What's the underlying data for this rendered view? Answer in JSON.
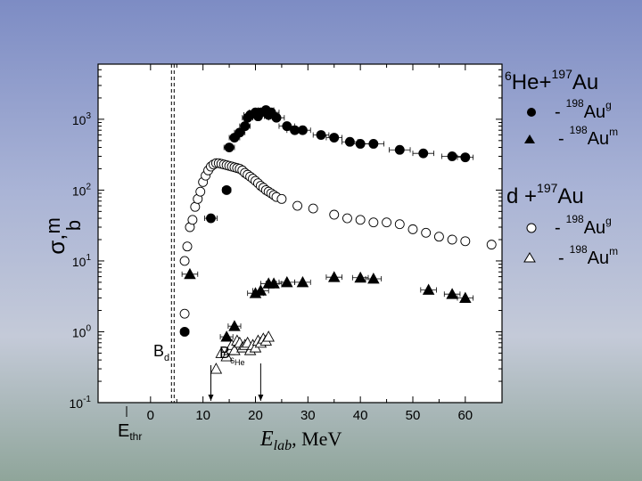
{
  "chart_data": {
    "type": "scatter",
    "title": "",
    "xlabel": "E_lab , MeV",
    "xlabel_parts": {
      "main": "E",
      "sub": "lab",
      "rest": ", MeV"
    },
    "ylabel": "σ, mb",
    "ylabel_parts": {
      "sigma": "σ,",
      "m": "m",
      "b": "b"
    },
    "x_scale": "linear",
    "y_scale": "log",
    "xlim": [
      -10,
      67
    ],
    "ylim": [
      0.1,
      6000
    ],
    "x_ticks": [
      0,
      10,
      20,
      30,
      40,
      50,
      60
    ],
    "x_tick_labels": [
      "0",
      "10",
      "20",
      "30",
      "40",
      "50",
      "60"
    ],
    "y_ticks": [
      0.1,
      1,
      10,
      100,
      1000
    ],
    "y_tick_labels": [
      {
        "base": "10",
        "exp": "-1"
      },
      {
        "base": "10",
        "exp": "0"
      },
      {
        "base": "10",
        "exp": "1"
      },
      {
        "base": "10",
        "exp": "2"
      },
      {
        "base": "10",
        "exp": "3"
      }
    ],
    "grid": false,
    "legend_placement": "right",
    "reactions": [
      {
        "mass_a": "6",
        "sym_a": "He+",
        "mass_b": "197",
        "sym_b": "Au"
      },
      {
        "mass_a": "",
        "sym_a": "d +",
        "mass_b": "197",
        "sym_b": "Au"
      }
    ],
    "series": [
      {
        "name": "- 198Au g",
        "name_dash": "-",
        "name_mass": "198",
        "name_sym": "Au",
        "name_sup": "g",
        "marker": "filled-circle",
        "reaction": 0,
        "x": [
          6.5,
          11.5,
          14.5,
          15,
          16,
          17,
          18,
          18.5,
          19,
          20,
          20.5,
          21,
          22,
          22.5,
          23,
          24,
          26,
          27.5,
          29,
          32.5,
          35,
          38,
          40,
          42.5,
          47.5,
          52,
          57.5,
          60
        ],
        "y": [
          1.0,
          40,
          100,
          400,
          550,
          650,
          800,
          1050,
          1150,
          1250,
          1100,
          1250,
          1350,
          1150,
          1250,
          1050,
          800,
          700,
          700,
          600,
          550,
          480,
          450,
          450,
          370,
          330,
          300,
          290
        ],
        "xerr": [
          0.8,
          1.2,
          0.8,
          1,
          1,
          1,
          1,
          1,
          1.2,
          1.2,
          1.2,
          1.5,
          1.5,
          1.5,
          1.5,
          1.5,
          1.5,
          1.5,
          1.5,
          1.5,
          1.5,
          1.5,
          2,
          2,
          2,
          2,
          2,
          1.5
        ]
      },
      {
        "name": "- 198Au m",
        "name_dash": "-",
        "name_mass": "198",
        "name_sym": "Au",
        "name_sup": "m",
        "marker": "filled-triangle",
        "reaction": 0,
        "x": [
          7.5,
          14.5,
          16,
          20,
          21,
          22.5,
          23.5,
          26,
          29,
          35,
          40,
          42.5,
          53,
          57.5,
          60
        ],
        "y": [
          6.5,
          0.85,
          1.2,
          3.5,
          3.8,
          4.8,
          4.8,
          5.0,
          5.0,
          5.9,
          5.8,
          5.6,
          3.9,
          3.4,
          3.0
        ],
        "xerr": [
          1.5,
          1.2,
          1.2,
          1.5,
          1.5,
          1.5,
          1.5,
          1.5,
          1.5,
          1.5,
          1.5,
          1.5,
          1.5,
          1.5,
          1.5
        ]
      },
      {
        "name": "- 198Au g",
        "name_dash": "-",
        "name_mass": "198",
        "name_sym": "Au",
        "name_sup": "g",
        "marker": "open-circle",
        "reaction": 1,
        "x": [
          6.5,
          6.5,
          7,
          7.5,
          8,
          8.5,
          9,
          9.5,
          10,
          10.5,
          11,
          11.5,
          12,
          12.5,
          13,
          13.5,
          14,
          14.5,
          15,
          15.5,
          16,
          16.5,
          17,
          17.5,
          18,
          18.5,
          19,
          19.5,
          20,
          20.5,
          21,
          21.5,
          22,
          22.5,
          23,
          23.5,
          24,
          25,
          28,
          31,
          35,
          37.5,
          40,
          42.5,
          45,
          47.5,
          50,
          52.5,
          55,
          57.5,
          60,
          65
        ],
        "y": [
          1.8,
          10,
          16,
          30,
          38,
          58,
          75,
          95,
          130,
          160,
          190,
          215,
          230,
          240,
          240,
          235,
          230,
          225,
          220,
          215,
          210,
          205,
          200,
          190,
          175,
          165,
          155,
          145,
          135,
          125,
          115,
          108,
          100,
          95,
          90,
          85,
          80,
          75,
          60,
          55,
          45,
          40,
          38,
          35,
          35,
          33,
          28,
          25,
          22,
          20,
          19,
          17
        ]
      },
      {
        "name": "- 198Au m",
        "name_dash": "-",
        "name_mass": "198",
        "name_sym": "Au",
        "name_sup": "m",
        "marker": "open-triangle",
        "reaction": 1,
        "x": [
          12.5,
          13.5,
          14.5,
          15,
          15.5,
          16,
          16.5,
          17,
          17.5,
          18,
          18.5,
          19,
          19.5,
          20,
          20.5,
          21,
          21.5,
          22,
          22.5
        ],
        "y": [
          0.3,
          0.5,
          0.45,
          0.55,
          0.65,
          0.55,
          0.75,
          0.7,
          0.6,
          0.65,
          0.7,
          0.55,
          0.65,
          0.6,
          0.75,
          0.7,
          0.8,
          0.75,
          0.85
        ]
      }
    ],
    "threshold": {
      "x": 4.5,
      "label_main": "E",
      "label_sub": "thr"
    },
    "annotations": [
      {
        "main": "B",
        "sub": "d",
        "x": 11.5
      },
      {
        "main": "B",
        "sub_a": "6",
        "sub_b": "He",
        "x": 21
      }
    ]
  }
}
